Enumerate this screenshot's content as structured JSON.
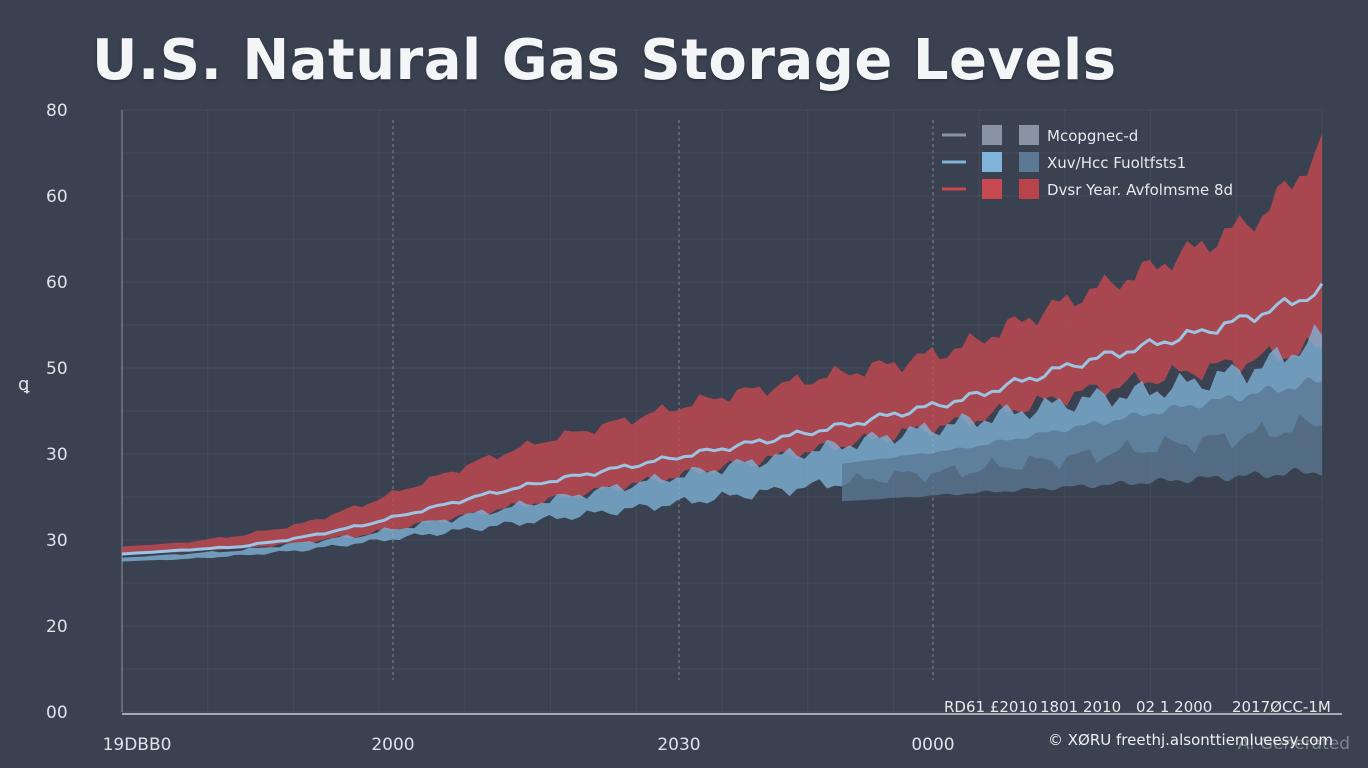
{
  "title": "U.S. Natural Gas Storage Levels",
  "y_axis_symbol": "ꝗ",
  "credit": "© XØRU freethj.alsonttiemlueesy.com",
  "ai_mark": "AI Generated",
  "legend": [
    {
      "label": "Mcopgnec-d",
      "color": "#8a93a3",
      "line_color": "#8a93a3"
    },
    {
      "label": "Xuv/Hcc Fuoltfsts1",
      "color": "#7fb3d9",
      "swatch2": "#5b7894",
      "line_color": "#7fb3d9"
    },
    {
      "label": "Dvsr Year. Avfolmsme 8d",
      "color": "#c8494f",
      "swatch2": "#b8434a",
      "line_color": "#c8494f"
    }
  ],
  "date_labels": [
    "RD61 £2010",
    "1801 2010",
    "02 1 2000",
    "2017ØCC-1M"
  ],
  "chart_data": {
    "type": "area",
    "title": "U.S. Natural Gas Storage Levels",
    "xlabel": "",
    "ylabel": "ꝗ",
    "x_ticks": [
      "19DBB0",
      "2000",
      "2030",
      "0000"
    ],
    "y_ticks": [
      "80",
      "60",
      "60",
      "50",
      "30",
      "30",
      "20",
      "00"
    ],
    "ylim": [
      0,
      80
    ],
    "grid": true,
    "legend_position": "top-right",
    "series": [
      {
        "kind": "band",
        "color": "#c8494f",
        "x": [
          0,
          5,
          10,
          15,
          20,
          25,
          30,
          35,
          40,
          45,
          50,
          55,
          60,
          65,
          70,
          75,
          80,
          85,
          90,
          95,
          100
        ],
        "upper": [
          22,
          22.5,
          23.5,
          25,
          27.5,
          30.5,
          33.5,
          36,
          38,
          40,
          42,
          43.5,
          45,
          46.5,
          48.5,
          52,
          55.5,
          58.5,
          62,
          66,
          75
        ],
        "lower": [
          21,
          21.3,
          21.8,
          22.5,
          23.5,
          25,
          26.5,
          28,
          29.5,
          31,
          32.5,
          34,
          35.5,
          37,
          38.5,
          40.5,
          42.5,
          44,
          45.5,
          47,
          48.5
        ]
      },
      {
        "kind": "band",
        "color": "#7fb3d9",
        "x": [
          0,
          5,
          10,
          15,
          20,
          25,
          30,
          35,
          40,
          45,
          50,
          55,
          60,
          65,
          70,
          75,
          80,
          85,
          90,
          95,
          100
        ],
        "upper": [
          20.5,
          21,
          21.5,
          22.5,
          23.5,
          25,
          26.5,
          28,
          29.5,
          31,
          32.5,
          34,
          35.5,
          37,
          38.5,
          40,
          41.5,
          42.5,
          44,
          46,
          50
        ],
        "lower": [
          20,
          20.3,
          20.8,
          21.5,
          22.5,
          23.5,
          24.5,
          25.5,
          26.5,
          27.5,
          28.5,
          29.5,
          30.5,
          31.5,
          32,
          33,
          34,
          35,
          36,
          37,
          38.5
        ]
      },
      {
        "kind": "band",
        "color": "#5b7894",
        "x": [
          60,
          65,
          70,
          75,
          80,
          85,
          90,
          95,
          100
        ],
        "upper": [
          33,
          34,
          35,
          36.5,
          38,
          39.5,
          41,
          42.5,
          44
        ],
        "lower": [
          28,
          28.5,
          29,
          29.5,
          30,
          30.5,
          31,
          31.5,
          32
        ]
      },
      {
        "kind": "line",
        "color": "#9cc4e4",
        "x": [
          0,
          5,
          10,
          15,
          20,
          25,
          30,
          35,
          40,
          45,
          50,
          55,
          60,
          65,
          70,
          75,
          80,
          85,
          90,
          95,
          100
        ],
        "values": [
          21,
          21.5,
          22,
          23.2,
          24.8,
          26.8,
          28.8,
          30.5,
          32,
          33.5,
          35,
          36.5,
          38,
          39.8,
          41.5,
          44,
          46.5,
          48.5,
          50.5,
          53,
          56
        ]
      }
    ]
  }
}
